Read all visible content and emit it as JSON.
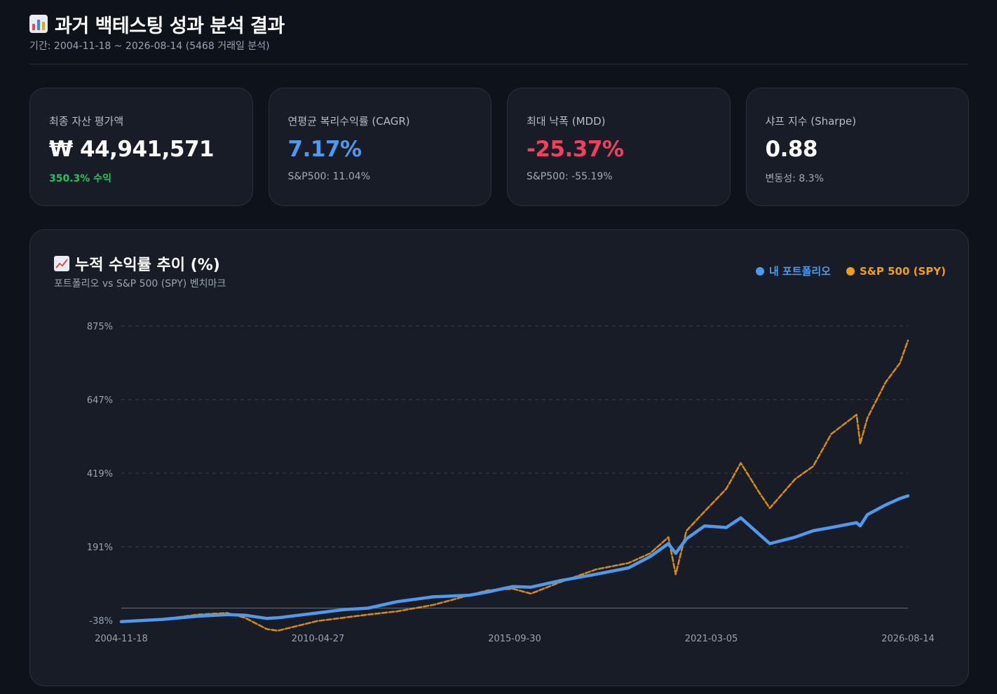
{
  "header": {
    "title": "과거 백테스팅 성과 분석 결과",
    "title_icon": "bar-chart-icon",
    "subtitle": "기간: 2004-11-18 ~ 2026-08-14 (5468 거래일 분석)"
  },
  "cards": [
    {
      "label": "최종 자산 평가액",
      "value": "₩ 44,941,571",
      "sub": "350.3% 수익",
      "value_color": "#ffffff"
    },
    {
      "label": "연평균 복리수익률 (CAGR)",
      "value": "7.17%",
      "sub": "S&P500: 11.04%",
      "value_color": "#4c9bf0"
    },
    {
      "label": "최대 낙폭 (MDD)",
      "value": "-25.37%",
      "sub": "S&P500: -55.19%",
      "value_color": "#f43f5e"
    },
    {
      "label": "샤프 지수 (Sharpe)",
      "value": "0.88",
      "sub": "변동성: 8.3%",
      "value_color": "#ffffff"
    }
  ],
  "panel": {
    "title": "누적 수익률 추이 (%)",
    "title_icon": "trend-chart-icon",
    "subtitle": "포트폴리오 vs S&P 500 (SPY) 벤치마크"
  },
  "colors": {
    "portfolio": "#4c9bf0",
    "spy": "#f59e0b",
    "positive": "#22c55e",
    "negative": "#f43f5e"
  },
  "chart_data": {
    "type": "line",
    "x_ticks": [
      "2004-11-18",
      "2010-04-27",
      "2015-09-30",
      "2021-03-05",
      "2026-08-14"
    ],
    "y_ticks": [
      "875%",
      "647%",
      "419%",
      "191%",
      "-38%"
    ],
    "ylim": [
      -38,
      875
    ],
    "x": [
      2004.88,
      2006.0,
      2007.0,
      2007.8,
      2008.3,
      2008.9,
      2009.2,
      2010.3,
      2011.0,
      2011.7,
      2012.5,
      2013.5,
      2014.5,
      2015.0,
      2015.7,
      2016.2,
      2017.0,
      2018.0,
      2018.9,
      2019.5,
      2020.0,
      2020.2,
      2020.5,
      2021.0,
      2021.6,
      2022.0,
      2022.5,
      2022.8,
      2023.5,
      2024.0,
      2024.5,
      2025.2,
      2025.3,
      2025.5,
      2026.0,
      2026.4,
      2026.62
    ],
    "series": [
      {
        "name": "내 포트폴리오",
        "values": [
          -42,
          -35,
          -25,
          -20,
          -22,
          -32,
          -30,
          -15,
          -5,
          0,
          20,
          35,
          40,
          50,
          67,
          65,
          85,
          105,
          125,
          160,
          200,
          170,
          215,
          255,
          250,
          280,
          230,
          200,
          220,
          240,
          250,
          265,
          255,
          290,
          320,
          340,
          348
        ]
      },
      {
        "name": "S&P 500 (SPY)",
        "values": [
          -42,
          -35,
          -20,
          -15,
          -30,
          -65,
          -70,
          -40,
          -30,
          -20,
          -10,
          10,
          40,
          55,
          60,
          45,
          80,
          120,
          140,
          170,
          220,
          105,
          240,
          300,
          370,
          450,
          360,
          310,
          400,
          440,
          540,
          600,
          510,
          590,
          700,
          760,
          830
        ]
      }
    ]
  }
}
